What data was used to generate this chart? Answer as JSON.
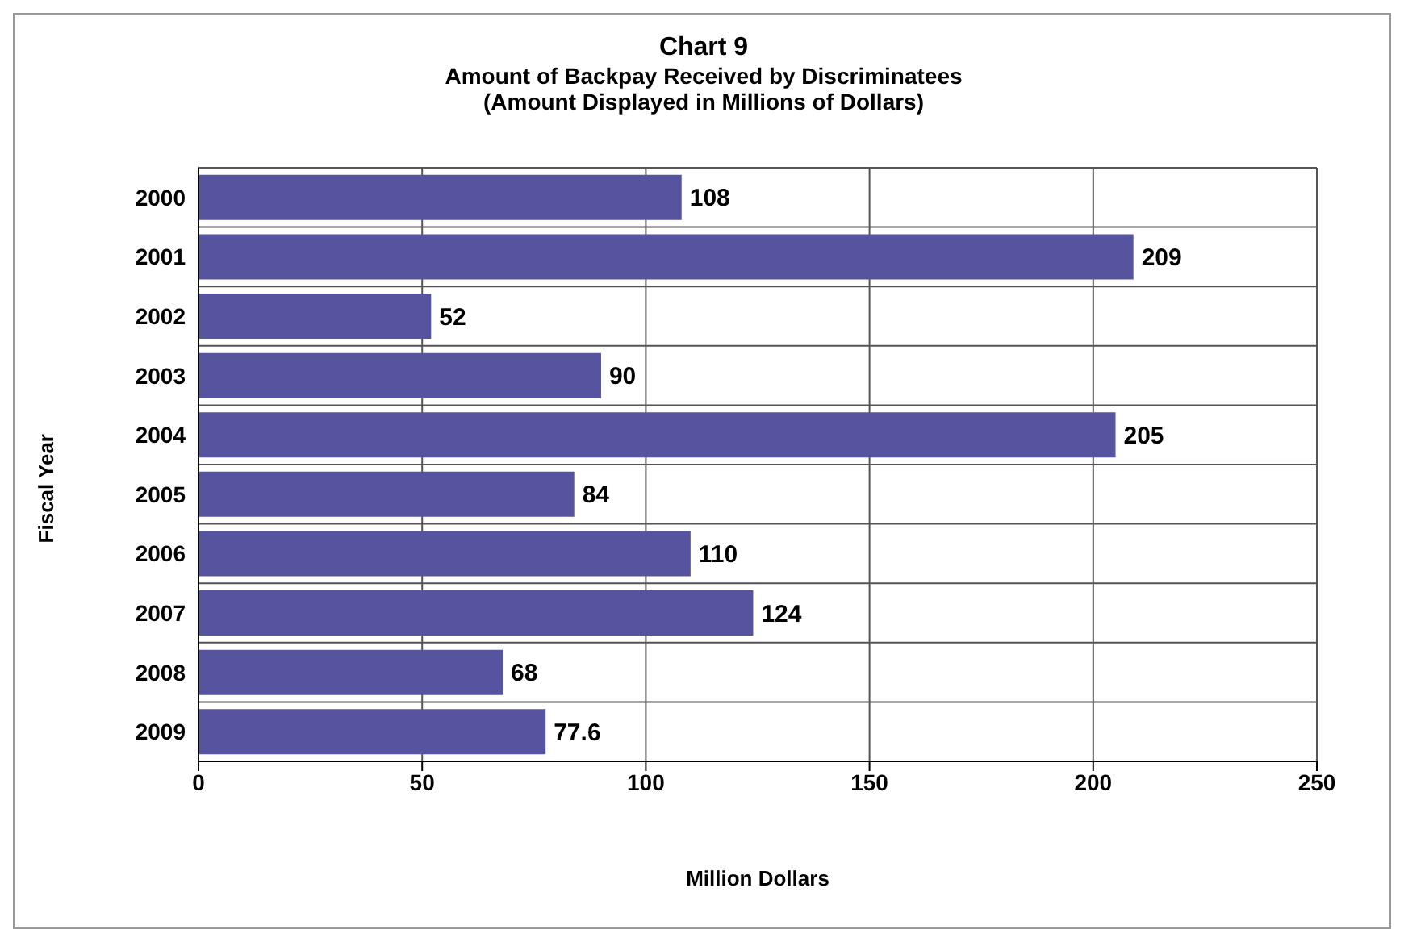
{
  "chart_data": {
    "type": "bar",
    "orientation": "horizontal",
    "title": "Chart 9",
    "subtitle": "Amount of Backpay Received by Discriminatees\n(Amount Displayed in Millions of Dollars)",
    "xlabel": "Million Dollars",
    "ylabel": "Fiscal Year",
    "categories": [
      "2000",
      "2001",
      "2002",
      "2003",
      "2004",
      "2005",
      "2006",
      "2007",
      "2008",
      "2009"
    ],
    "values": [
      108,
      209,
      52,
      90,
      205,
      84,
      110,
      124,
      68,
      77.6
    ],
    "color": "#56549e",
    "xlim": [
      0,
      250
    ],
    "xticks": [
      0,
      50,
      100,
      150,
      200,
      250
    ],
    "grid": true,
    "data_labels": true
  }
}
